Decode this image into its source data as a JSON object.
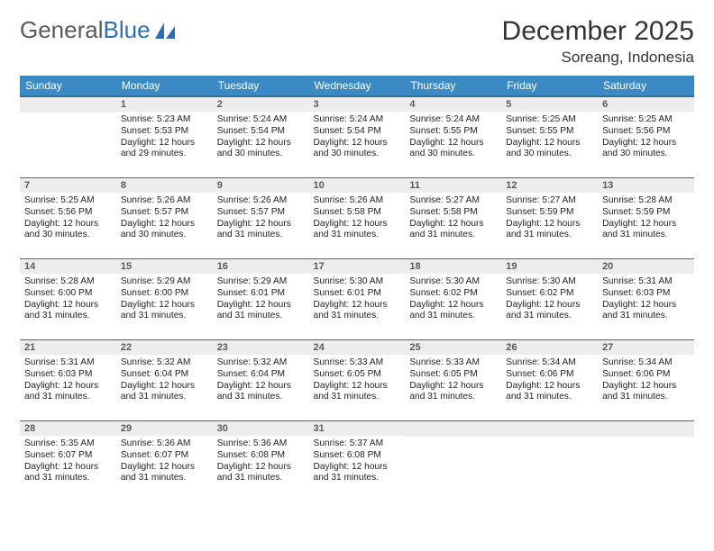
{
  "logo": {
    "text_a": "General",
    "text_b": "Blue"
  },
  "title": "December 2025",
  "location": "Soreang, Indonesia",
  "colors": {
    "header_bg": "#3b8ac4",
    "header_text": "#ffffff",
    "rule": "#2d6fa0",
    "daynum_bg": "#ededed",
    "daynum_text": "#5a5a5a",
    "body_text": "#222222",
    "page_bg": "#ffffff",
    "logo_gray": "#5a5a5a",
    "logo_blue": "#2d6fb5"
  },
  "typography": {
    "title_fontsize": 30,
    "location_fontsize": 17,
    "dayhead_fontsize": 12,
    "daynum_fontsize": 11,
    "body_fontsize": 10.2,
    "font_family": "Arial"
  },
  "day_headers": [
    "Sunday",
    "Monday",
    "Tuesday",
    "Wednesday",
    "Thursday",
    "Friday",
    "Saturday"
  ],
  "weeks": [
    [
      null,
      {
        "n": "1",
        "sunrise": "Sunrise: 5:23 AM",
        "sunset": "Sunset: 5:53 PM",
        "daylight": "Daylight: 12 hours and 29 minutes."
      },
      {
        "n": "2",
        "sunrise": "Sunrise: 5:24 AM",
        "sunset": "Sunset: 5:54 PM",
        "daylight": "Daylight: 12 hours and 30 minutes."
      },
      {
        "n": "3",
        "sunrise": "Sunrise: 5:24 AM",
        "sunset": "Sunset: 5:54 PM",
        "daylight": "Daylight: 12 hours and 30 minutes."
      },
      {
        "n": "4",
        "sunrise": "Sunrise: 5:24 AM",
        "sunset": "Sunset: 5:55 PM",
        "daylight": "Daylight: 12 hours and 30 minutes."
      },
      {
        "n": "5",
        "sunrise": "Sunrise: 5:25 AM",
        "sunset": "Sunset: 5:55 PM",
        "daylight": "Daylight: 12 hours and 30 minutes."
      },
      {
        "n": "6",
        "sunrise": "Sunrise: 5:25 AM",
        "sunset": "Sunset: 5:56 PM",
        "daylight": "Daylight: 12 hours and 30 minutes."
      }
    ],
    [
      {
        "n": "7",
        "sunrise": "Sunrise: 5:25 AM",
        "sunset": "Sunset: 5:56 PM",
        "daylight": "Daylight: 12 hours and 30 minutes."
      },
      {
        "n": "8",
        "sunrise": "Sunrise: 5:26 AM",
        "sunset": "Sunset: 5:57 PM",
        "daylight": "Daylight: 12 hours and 30 minutes."
      },
      {
        "n": "9",
        "sunrise": "Sunrise: 5:26 AM",
        "sunset": "Sunset: 5:57 PM",
        "daylight": "Daylight: 12 hours and 31 minutes."
      },
      {
        "n": "10",
        "sunrise": "Sunrise: 5:26 AM",
        "sunset": "Sunset: 5:58 PM",
        "daylight": "Daylight: 12 hours and 31 minutes."
      },
      {
        "n": "11",
        "sunrise": "Sunrise: 5:27 AM",
        "sunset": "Sunset: 5:58 PM",
        "daylight": "Daylight: 12 hours and 31 minutes."
      },
      {
        "n": "12",
        "sunrise": "Sunrise: 5:27 AM",
        "sunset": "Sunset: 5:59 PM",
        "daylight": "Daylight: 12 hours and 31 minutes."
      },
      {
        "n": "13",
        "sunrise": "Sunrise: 5:28 AM",
        "sunset": "Sunset: 5:59 PM",
        "daylight": "Daylight: 12 hours and 31 minutes."
      }
    ],
    [
      {
        "n": "14",
        "sunrise": "Sunrise: 5:28 AM",
        "sunset": "Sunset: 6:00 PM",
        "daylight": "Daylight: 12 hours and 31 minutes."
      },
      {
        "n": "15",
        "sunrise": "Sunrise: 5:29 AM",
        "sunset": "Sunset: 6:00 PM",
        "daylight": "Daylight: 12 hours and 31 minutes."
      },
      {
        "n": "16",
        "sunrise": "Sunrise: 5:29 AM",
        "sunset": "Sunset: 6:01 PM",
        "daylight": "Daylight: 12 hours and 31 minutes."
      },
      {
        "n": "17",
        "sunrise": "Sunrise: 5:30 AM",
        "sunset": "Sunset: 6:01 PM",
        "daylight": "Daylight: 12 hours and 31 minutes."
      },
      {
        "n": "18",
        "sunrise": "Sunrise: 5:30 AM",
        "sunset": "Sunset: 6:02 PM",
        "daylight": "Daylight: 12 hours and 31 minutes."
      },
      {
        "n": "19",
        "sunrise": "Sunrise: 5:30 AM",
        "sunset": "Sunset: 6:02 PM",
        "daylight": "Daylight: 12 hours and 31 minutes."
      },
      {
        "n": "20",
        "sunrise": "Sunrise: 5:31 AM",
        "sunset": "Sunset: 6:03 PM",
        "daylight": "Daylight: 12 hours and 31 minutes."
      }
    ],
    [
      {
        "n": "21",
        "sunrise": "Sunrise: 5:31 AM",
        "sunset": "Sunset: 6:03 PM",
        "daylight": "Daylight: 12 hours and 31 minutes."
      },
      {
        "n": "22",
        "sunrise": "Sunrise: 5:32 AM",
        "sunset": "Sunset: 6:04 PM",
        "daylight": "Daylight: 12 hours and 31 minutes."
      },
      {
        "n": "23",
        "sunrise": "Sunrise: 5:32 AM",
        "sunset": "Sunset: 6:04 PM",
        "daylight": "Daylight: 12 hours and 31 minutes."
      },
      {
        "n": "24",
        "sunrise": "Sunrise: 5:33 AM",
        "sunset": "Sunset: 6:05 PM",
        "daylight": "Daylight: 12 hours and 31 minutes."
      },
      {
        "n": "25",
        "sunrise": "Sunrise: 5:33 AM",
        "sunset": "Sunset: 6:05 PM",
        "daylight": "Daylight: 12 hours and 31 minutes."
      },
      {
        "n": "26",
        "sunrise": "Sunrise: 5:34 AM",
        "sunset": "Sunset: 6:06 PM",
        "daylight": "Daylight: 12 hours and 31 minutes."
      },
      {
        "n": "27",
        "sunrise": "Sunrise: 5:34 AM",
        "sunset": "Sunset: 6:06 PM",
        "daylight": "Daylight: 12 hours and 31 minutes."
      }
    ],
    [
      {
        "n": "28",
        "sunrise": "Sunrise: 5:35 AM",
        "sunset": "Sunset: 6:07 PM",
        "daylight": "Daylight: 12 hours and 31 minutes."
      },
      {
        "n": "29",
        "sunrise": "Sunrise: 5:36 AM",
        "sunset": "Sunset: 6:07 PM",
        "daylight": "Daylight: 12 hours and 31 minutes."
      },
      {
        "n": "30",
        "sunrise": "Sunrise: 5:36 AM",
        "sunset": "Sunset: 6:08 PM",
        "daylight": "Daylight: 12 hours and 31 minutes."
      },
      {
        "n": "31",
        "sunrise": "Sunrise: 5:37 AM",
        "sunset": "Sunset: 6:08 PM",
        "daylight": "Daylight: 12 hours and 31 minutes."
      },
      null,
      null,
      null
    ]
  ]
}
